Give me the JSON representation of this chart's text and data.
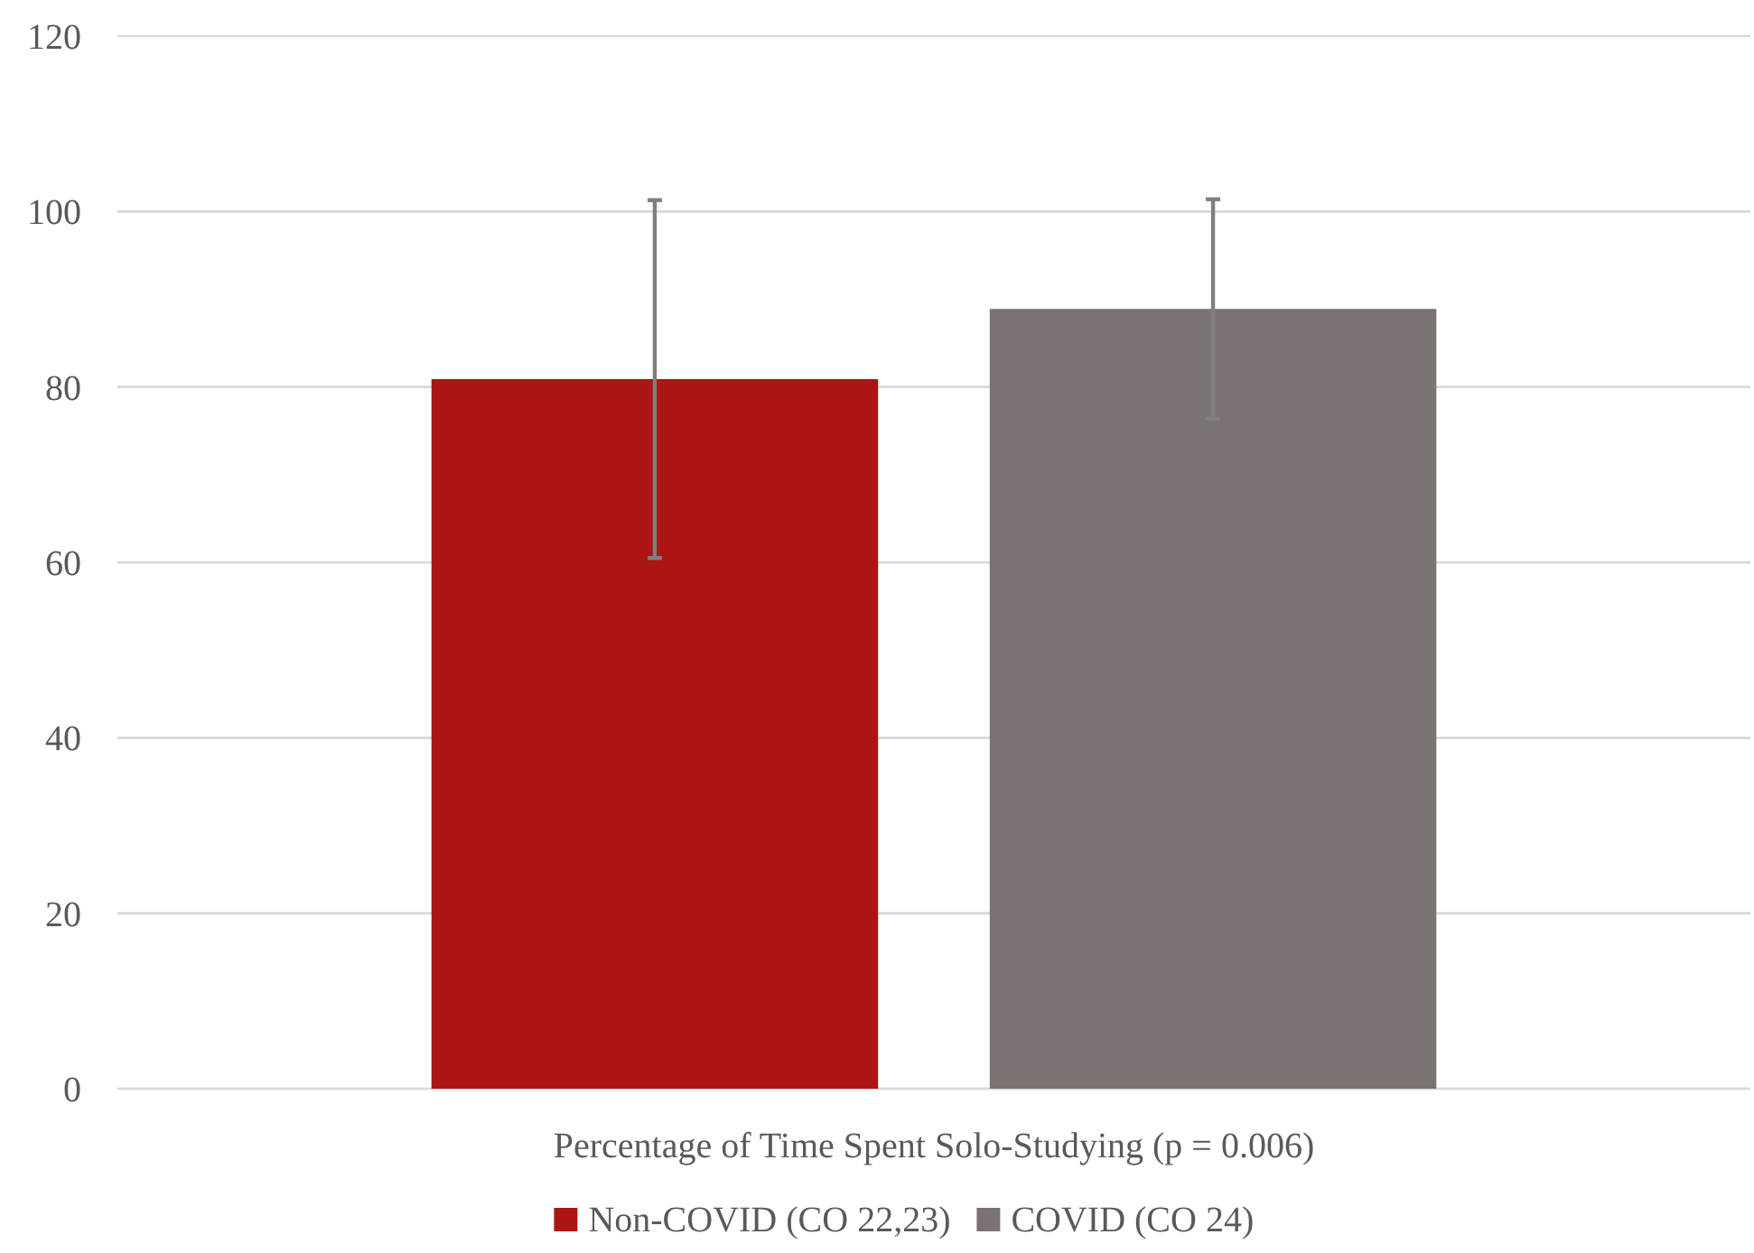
{
  "chart_data": {
    "type": "bar",
    "categories": [
      "Percentage of Time Spent Solo-Studying (p = 0.006)"
    ],
    "series": [
      {
        "name": "Non-COVID (CO 22,23)",
        "color": "#ab1614",
        "values": [
          80.9
        ],
        "errors": [
          20.4
        ]
      },
      {
        "name": "COVID (CO 24)",
        "color": "#7b7371",
        "values": [
          88.9
        ],
        "errors": [
          12.5
        ]
      }
    ],
    "ylim": [
      0,
      120
    ],
    "yticks": [
      0,
      20,
      40,
      60,
      80,
      100,
      120
    ],
    "grid": "y",
    "legend": "bottom"
  }
}
